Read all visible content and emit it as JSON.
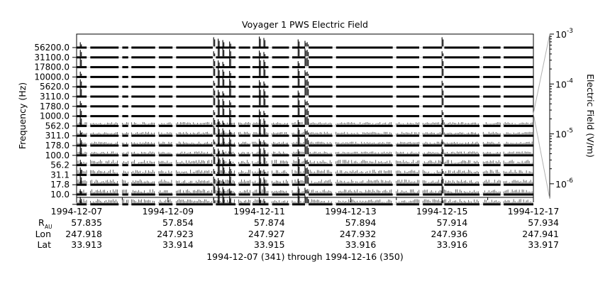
{
  "chart_data": {
    "type": "line",
    "title": "Voyager 1 PWS Electric Field",
    "ylabel": "Frequency (Hz)",
    "y2label": "Electric Field (V/m)",
    "y_channels": [
      "10.0",
      "17.8",
      "31.1",
      "56.2",
      "100.0",
      "178.0",
      "311.0",
      "562.0",
      "1000.0",
      "1780.0",
      "3110.0",
      "5620.0",
      "10000.0",
      "17800.0",
      "31100.0",
      "56200.0"
    ],
    "y2_ticks": [
      {
        "base": "10",
        "exp": "-3"
      },
      {
        "base": "10",
        "exp": "-4"
      },
      {
        "base": "10",
        "exp": "-5"
      },
      {
        "base": "10",
        "exp": "-6"
      }
    ],
    "y2lim": [
      5e-07,
      0.001
    ],
    "y2_scale": "log",
    "x_ticks": [
      "1994-12-07",
      "1994-12-09",
      "1994-12-11",
      "1994-12-13",
      "1994-12-15",
      "1994-12-17"
    ],
    "xlim_days": [
      0,
      10
    ],
    "ephemeris": {
      "labels": {
        "r": "R",
        "r_sub": "AU",
        "lon": "Lon",
        "lat": "Lat"
      },
      "r": [
        "57.835",
        "57.854",
        "57.874",
        "57.894",
        "57.914",
        "57.934"
      ],
      "lon": [
        "247.918",
        "247.923",
        "247.927",
        "247.932",
        "247.936",
        "247.941"
      ],
      "lat": [
        "33.913",
        "33.914",
        "33.915",
        "33.916",
        "33.916",
        "33.917"
      ]
    },
    "footer": "1994-12-07 (341) through 1994-12-16 (350)",
    "grid": true,
    "data_segments_days": [
      [
        0.0,
        0.22
      ],
      [
        0.3,
        0.92
      ],
      [
        1.0,
        1.13
      ],
      [
        1.2,
        1.72
      ],
      [
        1.8,
        2.1
      ],
      [
        2.18,
        2.98
      ],
      [
        3.05,
        3.48
      ],
      [
        3.55,
        3.8
      ],
      [
        3.85,
        4.2
      ],
      [
        4.28,
        4.65
      ],
      [
        4.72,
        5.0
      ],
      [
        5.08,
        5.6
      ],
      [
        5.68,
        6.92
      ],
      [
        7.0,
        7.5
      ],
      [
        7.58,
        8.0
      ],
      [
        8.05,
        8.82
      ],
      [
        8.9,
        9.28
      ],
      [
        9.35,
        10.0
      ]
    ],
    "burst_days": [
      0.08,
      3.0,
      3.1,
      3.2,
      3.35,
      4.0,
      4.1,
      4.85,
      5.0,
      5.05,
      8.0
    ]
  }
}
